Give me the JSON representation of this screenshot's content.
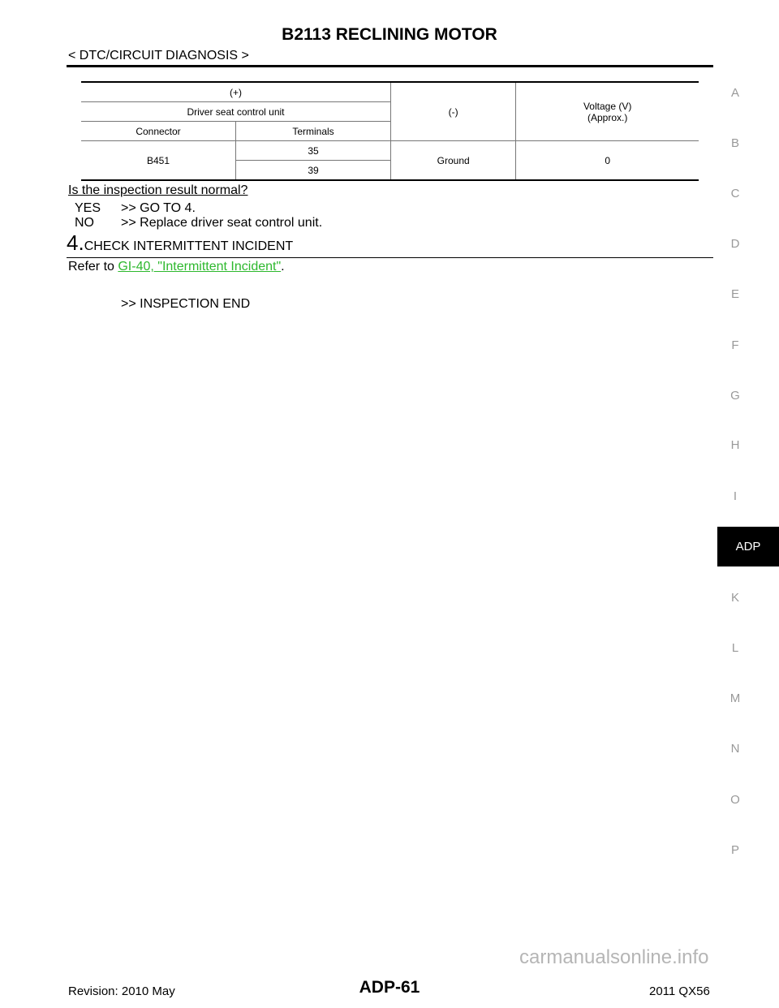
{
  "header": {
    "title": "B2113 RECLINING MOTOR",
    "breadcrumb": "< DTC/CIRCUIT DIAGNOSIS >"
  },
  "table": {
    "plus": "(+)",
    "unit": "Driver seat control unit",
    "connector_h": "Connector",
    "terminals_h": "Terminals",
    "minus_h": "(-)",
    "voltage_h": "Voltage (V)",
    "voltage_h2": "(Approx.)",
    "connector": "B451",
    "terminals": [
      "35",
      "39"
    ],
    "minus": "Ground",
    "voltage": "0"
  },
  "question": "Is the inspection result normal?",
  "yes": {
    "label": "YES",
    "text": ">> GO TO 4."
  },
  "no": {
    "label": "NO",
    "text": ">> Replace driver seat control unit."
  },
  "step4": {
    "num": "4.",
    "title": "CHECK INTERMITTENT INCIDENT",
    "refer_prefix": "Refer to ",
    "link": "GI-40, \"Intermittent Incident\"",
    "refer_suffix": ".",
    "end": ">> INSPECTION END"
  },
  "side_tabs": [
    "A",
    "B",
    "C",
    "D",
    "E",
    "F",
    "G",
    "H",
    "I",
    "ADP",
    "K",
    "L",
    "M",
    "N",
    "O",
    "P"
  ],
  "active_tab": "ADP",
  "footer": {
    "revision": "Revision: 2010 May",
    "page": "ADP-61",
    "model": "2011 QX56",
    "watermark": "carmanualsonline.info"
  },
  "colors": {
    "link": "#2db82d",
    "active_tab_bg": "#000000"
  }
}
